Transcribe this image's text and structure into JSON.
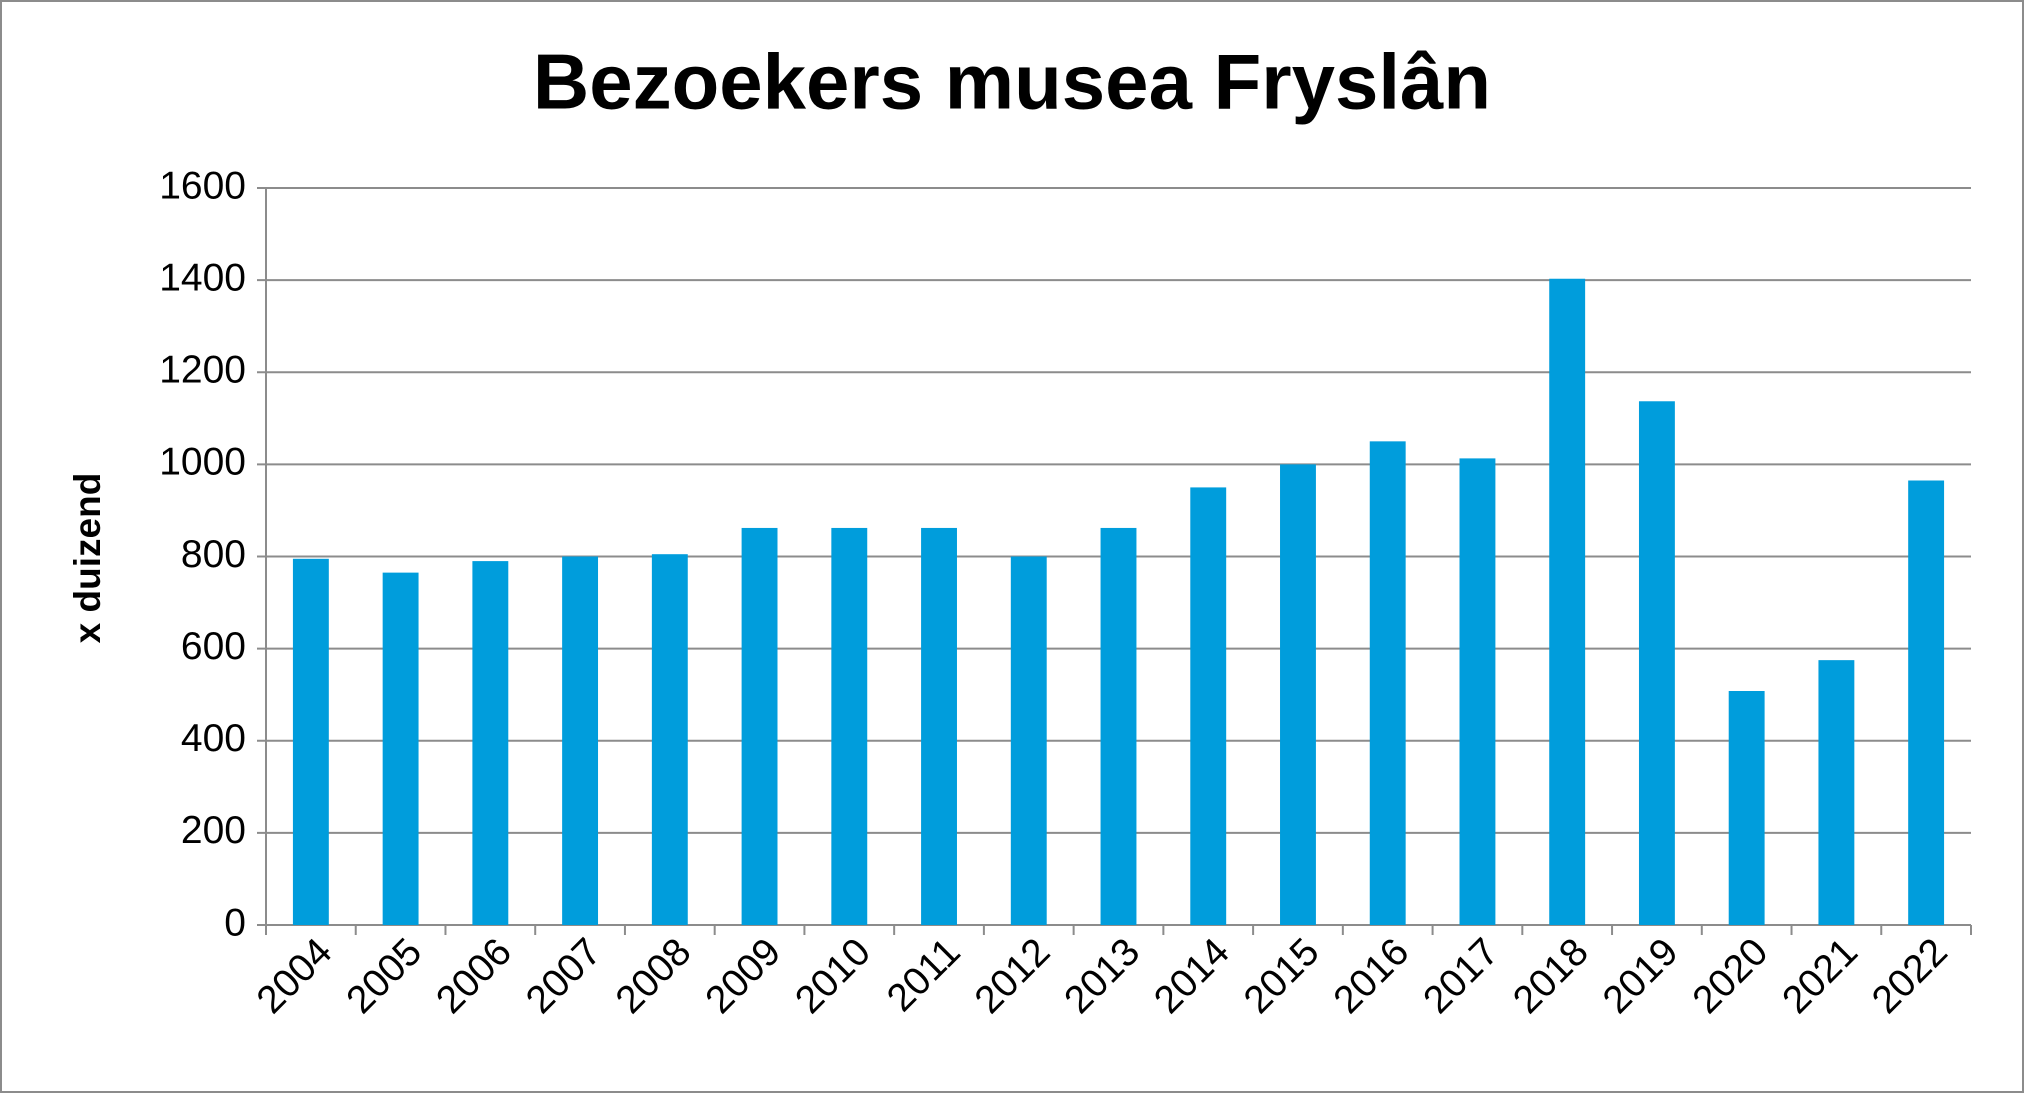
{
  "chart_data": {
    "type": "bar",
    "title": "Bezoekers musea Fryslân",
    "y_label": "x duizend",
    "categories": [
      "2004",
      "2005",
      "2006",
      "2007",
      "2008",
      "2009",
      "2010",
      "2011",
      "2012",
      "2013",
      "2014",
      "2015",
      "2016",
      "2017",
      "2018",
      "2019",
      "2020",
      "2021",
      "2022"
    ],
    "values": [
      795,
      765,
      790,
      800,
      805,
      862,
      862,
      862,
      800,
      862,
      950,
      1000,
      1050,
      1013,
      1403,
      1137,
      508,
      575,
      965
    ],
    "color": "#009ddc",
    "ylim": [
      0,
      1600
    ],
    "yticks": [
      0,
      200,
      400,
      600,
      800,
      1000,
      1200,
      1400,
      1600
    ],
    "grid": true
  }
}
